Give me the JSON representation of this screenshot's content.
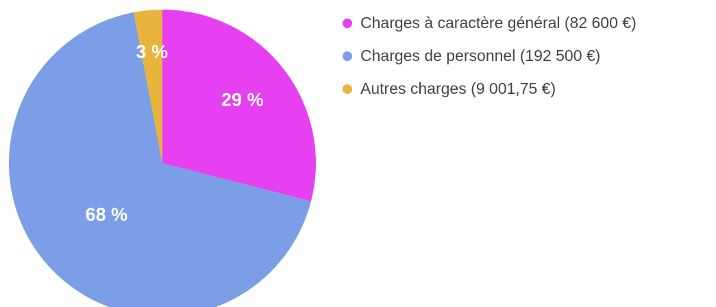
{
  "chart_data": {
    "type": "pie",
    "categories": [
      "Charges à caractère général (82 600 €)",
      "Charges de personnel (192 500 €)",
      "Autres charges (9 001,75 €)"
    ],
    "values": [
      29,
      68,
      3
    ],
    "value_labels": [
      "29 %",
      "68 %",
      "3 %"
    ],
    "colors": [
      "#e73ff2",
      "#7b9ee6",
      "#e8b43d"
    ],
    "legend": "right"
  }
}
